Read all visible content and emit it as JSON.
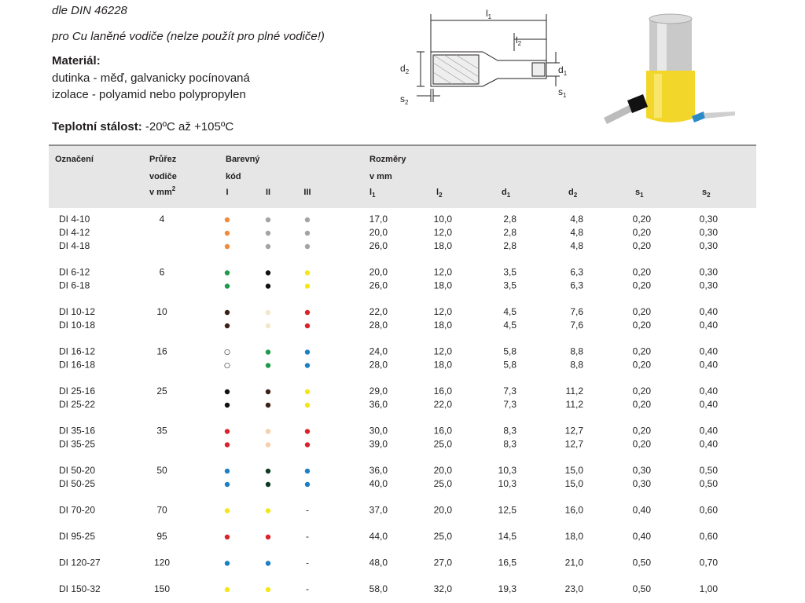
{
  "header": {
    "standard": "dle DIN 46228",
    "note": "pro Cu laněné vodiče (nelze použít pro plné vodiče!)",
    "material_title": "Materiál:",
    "material_lines": [
      "dutinka - měď, galvanicky pocínovaná",
      "izolace - polyamid nebo polypropylen"
    ],
    "temperature_label": "Teplotní stálost:",
    "temperature_value": " -20ºC až +105ºC"
  },
  "diagram": {
    "labels": [
      {
        "symbol": "l",
        "index": "1"
      },
      {
        "symbol": "l",
        "index": "2"
      },
      {
        "symbol": "d",
        "index": "2"
      },
      {
        "symbol": "d",
        "index": "1"
      },
      {
        "symbol": "s",
        "index": "2"
      },
      {
        "symbol": "s",
        "index": "1"
      }
    ]
  },
  "table": {
    "headers": {
      "name": "Označení",
      "cross_section": [
        "Průřez",
        "vodiče",
        {
          "text": "v mm",
          "sup": "2"
        }
      ],
      "color_code": [
        "Barevný",
        "kód"
      ],
      "color_columns": [
        "I",
        "II",
        "III"
      ],
      "dimensions": [
        "Rozměry",
        "v mm"
      ],
      "dimension_columns": [
        {
          "symbol": "l",
          "index": "1"
        },
        {
          "symbol": "l",
          "index": "2"
        },
        {
          "symbol": "d",
          "index": "1"
        },
        {
          "symbol": "d",
          "index": "2"
        },
        {
          "symbol": "s",
          "index": "1"
        },
        {
          "symbol": "s",
          "index": "2"
        }
      ]
    },
    "groups": [
      {
        "cross_section": "4",
        "rows": [
          {
            "name": "DI 4-10",
            "colors": [
              "#f08a3c",
              "#a3a3a3",
              "#a3a3a3"
            ],
            "dims": [
              "17,0",
              "10,0",
              "2,8",
              "4,8",
              "0,20",
              "0,30"
            ]
          },
          {
            "name": "DI 4-12",
            "colors": [
              "#f08a3c",
              "#a3a3a3",
              "#a3a3a3"
            ],
            "dims": [
              "20,0",
              "12,0",
              "2,8",
              "4,8",
              "0,20",
              "0,30"
            ]
          },
          {
            "name": "DI 4-18",
            "colors": [
              "#f08a3c",
              "#a3a3a3",
              "#a3a3a3"
            ],
            "dims": [
              "26,0",
              "18,0",
              "2,8",
              "4,8",
              "0,20",
              "0,30"
            ]
          }
        ]
      },
      {
        "cross_section": "6",
        "rows": [
          {
            "name": "DI 6-12",
            "colors": [
              "#1e9a4a",
              "#111111",
              "#f5e618"
            ],
            "dims": [
              "20,0",
              "12,0",
              "3,5",
              "6,3",
              "0,20",
              "0,30"
            ]
          },
          {
            "name": "DI 6-18",
            "colors": [
              "#1e9a4a",
              "#111111",
              "#f5e618"
            ],
            "dims": [
              "26,0",
              "18,0",
              "3,5",
              "6,3",
              "0,20",
              "0,30"
            ]
          }
        ]
      },
      {
        "cross_section": "10",
        "rows": [
          {
            "name": "DI 10-12",
            "colors": [
              "#3b2015",
              "#f3e7c9",
              "#d8232a"
            ],
            "dims": [
              "22,0",
              "12,0",
              "4,5",
              "7,6",
              "0,20",
              "0,40"
            ]
          },
          {
            "name": "DI 10-18",
            "colors": [
              "#3b2015",
              "#f3e7c9",
              "#d8232a"
            ],
            "dims": [
              "28,0",
              "18,0",
              "4,5",
              "7,6",
              "0,20",
              "0,40"
            ]
          }
        ]
      },
      {
        "cross_section": "16",
        "rows": [
          {
            "name": "DI 16-12",
            "colors": [
              "#ffffff",
              "#1e9a4a",
              "#1b7fc1"
            ],
            "dims": [
              "24,0",
              "12,0",
              "5,8",
              "8,8",
              "0,20",
              "0,40"
            ]
          },
          {
            "name": "DI 16-18",
            "colors": [
              "#ffffff",
              "#1e9a4a",
              "#1b7fc1"
            ],
            "dims": [
              "28,0",
              "18,0",
              "5,8",
              "8,8",
              "0,20",
              "0,40"
            ]
          }
        ]
      },
      {
        "cross_section": "25",
        "rows": [
          {
            "name": "DI 25-16",
            "colors": [
              "#111111",
              "#3b2015",
              "#f5e618"
            ],
            "dims": [
              "29,0",
              "16,0",
              "7,3",
              "11,2",
              "0,20",
              "0,40"
            ]
          },
          {
            "name": "DI 25-22",
            "colors": [
              "#111111",
              "#3b2015",
              "#f5e618"
            ],
            "dims": [
              "36,0",
              "22,0",
              "7,3",
              "11,2",
              "0,20",
              "0,40"
            ]
          }
        ]
      },
      {
        "cross_section": "35",
        "rows": [
          {
            "name": "DI 35-16",
            "colors": [
              "#d8232a",
              "#f6cfab",
              "#d8232a"
            ],
            "dims": [
              "30,0",
              "16,0",
              "8,3",
              "12,7",
              "0,20",
              "0,40"
            ]
          },
          {
            "name": "DI 35-25",
            "colors": [
              "#d8232a",
              "#f6cfab",
              "#d8232a"
            ],
            "dims": [
              "39,0",
              "25,0",
              "8,3",
              "12,7",
              "0,20",
              "0,40"
            ]
          }
        ]
      },
      {
        "cross_section": "50",
        "rows": [
          {
            "name": "DI 50-20",
            "colors": [
              "#1b7fc1",
              "#0e3b23",
              "#1b7fc1"
            ],
            "dims": [
              "36,0",
              "20,0",
              "10,3",
              "15,0",
              "0,30",
              "0,50"
            ]
          },
          {
            "name": "DI 50-25",
            "colors": [
              "#1b7fc1",
              "#0e3b23",
              "#1b7fc1"
            ],
            "dims": [
              "40,0",
              "25,0",
              "10,3",
              "15,0",
              "0,30",
              "0,50"
            ]
          }
        ]
      },
      {
        "cross_section": "70",
        "rows": [
          {
            "name": "DI 70-20",
            "colors": [
              "#f5e618",
              "#f5e618",
              "-"
            ],
            "dims": [
              "37,0",
              "20,0",
              "12,5",
              "16,0",
              "0,40",
              "0,60"
            ]
          }
        ]
      },
      {
        "cross_section": "95",
        "rows": [
          {
            "name": "DI 95-25",
            "colors": [
              "#d8232a",
              "#d8232a",
              "-"
            ],
            "dims": [
              "44,0",
              "25,0",
              "14,5",
              "18,0",
              "0,40",
              "0,60"
            ]
          }
        ]
      },
      {
        "cross_section": "120",
        "rows": [
          {
            "name": "DI 120-27",
            "colors": [
              "#1b7fc1",
              "#1b7fc1",
              "-"
            ],
            "dims": [
              "48,0",
              "27,0",
              "16,5",
              "21,0",
              "0,50",
              "0,70"
            ]
          }
        ]
      },
      {
        "cross_section": "150",
        "rows": [
          {
            "name": "DI 150-32",
            "colors": [
              "#f5e618",
              "#f5e618",
              "-"
            ],
            "dims": [
              "58,0",
              "32,0",
              "19,3",
              "23,0",
              "0,50",
              "1,00"
            ]
          }
        ]
      }
    ]
  }
}
